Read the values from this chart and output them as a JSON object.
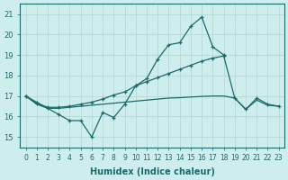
{
  "xlabel": "Humidex (Indice chaleur)",
  "bg_color": "#cdeeed",
  "grid_color": "#b8d8d8",
  "line_color": "#1a6b6b",
  "xlim": [
    -0.5,
    23.5
  ],
  "ylim": [
    14.5,
    21.5
  ],
  "yticks": [
    15,
    16,
    17,
    18,
    19,
    20,
    21
  ],
  "xticks": [
    0,
    1,
    2,
    3,
    4,
    5,
    6,
    7,
    8,
    9,
    10,
    11,
    12,
    13,
    14,
    15,
    16,
    17,
    18,
    19,
    20,
    21,
    22,
    23
  ],
  "series1": [
    17.0,
    16.7,
    16.4,
    16.1,
    15.8,
    15.8,
    15.0,
    16.2,
    15.95,
    16.6,
    17.5,
    17.85,
    18.8,
    19.5,
    19.6,
    20.4,
    20.85,
    19.4,
    19.0,
    null,
    null,
    null,
    null,
    null
  ],
  "series2": [
    17.0,
    16.65,
    16.45,
    16.45,
    16.5,
    16.6,
    16.7,
    16.85,
    17.05,
    17.2,
    17.5,
    17.7,
    17.9,
    18.1,
    18.3,
    18.5,
    18.7,
    18.85,
    18.95,
    16.9,
    16.35,
    16.9,
    16.6,
    16.5
  ],
  "series3": [
    17.0,
    16.6,
    16.4,
    16.4,
    16.45,
    16.5,
    16.55,
    16.6,
    16.65,
    16.7,
    16.75,
    16.8,
    16.85,
    16.9,
    16.92,
    16.95,
    16.98,
    17.0,
    17.0,
    16.9,
    16.35,
    16.8,
    16.55,
    16.5
  ],
  "xtick_fontsize": 5.5,
  "ytick_fontsize": 6.0,
  "xlabel_fontsize": 7
}
